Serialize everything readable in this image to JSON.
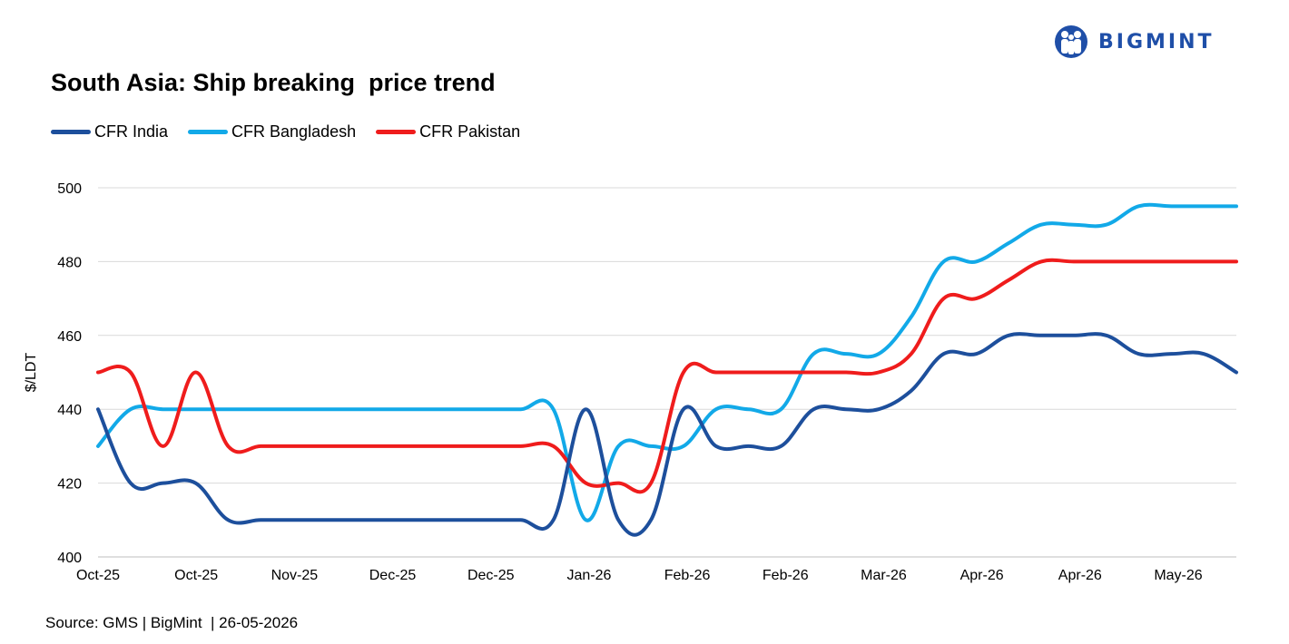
{
  "header": {
    "logo_text": "BIGMINT",
    "logo_icon": "people-circle-icon",
    "brand_color": "#1f4fa8"
  },
  "footer": {
    "source": "Source: GMS | BigMint  | 26-05-2026"
  },
  "chart_data": {
    "type": "line",
    "title": "South Asia: Ship breaking  price trend",
    "ylabel": "$/LDT",
    "xlabel": "",
    "ylim": [
      400,
      500
    ],
    "yticks": [
      400,
      420,
      440,
      460,
      480,
      500
    ],
    "grid": true,
    "legend_position": "top-left",
    "x_ticks": [
      "Oct-25",
      "Oct-25",
      "Nov-25",
      "Dec-25",
      "Dec-25",
      "Jan-26",
      "Feb-26",
      "Feb-26",
      "Mar-26",
      "Apr-26",
      "Apr-26",
      "May-26"
    ],
    "series": [
      {
        "name": "CFR India",
        "color": "#1d4f9c",
        "values": [
          440,
          420,
          420,
          420,
          410,
          410,
          410,
          410,
          410,
          410,
          410,
          410,
          410,
          410,
          410,
          440,
          410,
          410,
          440,
          430,
          430,
          430,
          440,
          440,
          440,
          445,
          455,
          455,
          460,
          460,
          460,
          460,
          455,
          455,
          455,
          450
        ]
      },
      {
        "name": "CFR Bangladesh",
        "color": "#12a9e8",
        "values": [
          430,
          440,
          440,
          440,
          440,
          440,
          440,
          440,
          440,
          440,
          440,
          440,
          440,
          440,
          440,
          410,
          430,
          430,
          430,
          440,
          440,
          440,
          455,
          455,
          455,
          465,
          480,
          480,
          485,
          490,
          490,
          490,
          495,
          495,
          495,
          495
        ]
      },
      {
        "name": "CFR Pakistan",
        "color": "#ef1c1c",
        "values": [
          450,
          450,
          430,
          450,
          430,
          430,
          430,
          430,
          430,
          430,
          430,
          430,
          430,
          430,
          430,
          420,
          420,
          420,
          450,
          450,
          450,
          450,
          450,
          450,
          450,
          455,
          470,
          470,
          475,
          480,
          480,
          480,
          480,
          480,
          480,
          480
        ]
      }
    ]
  }
}
